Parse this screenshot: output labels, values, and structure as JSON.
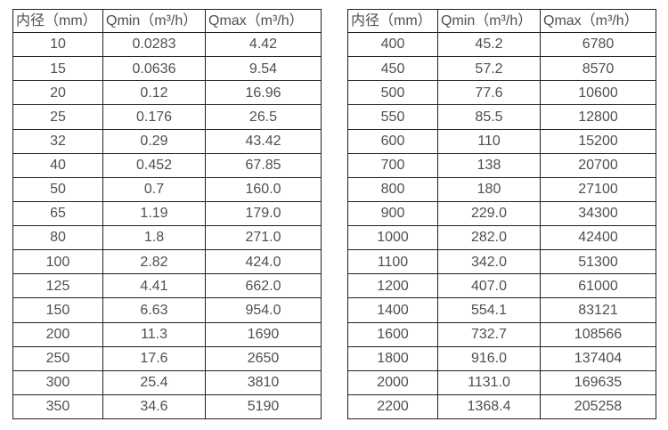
{
  "colors": {
    "background": "#ffffff",
    "border": "#212121",
    "text": "#4f4f4f"
  },
  "tables": [
    {
      "name": "small-diameter-flow-table",
      "headers": [
        "内径（mm）",
        "Qmin（m³/h）",
        "Qmax（m³/h）"
      ],
      "rows": [
        [
          "10",
          "0.0283",
          "4.42"
        ],
        [
          "15",
          "0.0636",
          "9.54"
        ],
        [
          "20",
          "0.12",
          "16.96"
        ],
        [
          "25",
          "0.176",
          "26.5"
        ],
        [
          "32",
          "0.29",
          "43.42"
        ],
        [
          "40",
          "0.452",
          "67.85"
        ],
        [
          "50",
          "0.7",
          "160.0"
        ],
        [
          "65",
          "1.19",
          "179.0"
        ],
        [
          "80",
          "1.8",
          "271.0"
        ],
        [
          "100",
          "2.82",
          "424.0"
        ],
        [
          "125",
          "4.41",
          "662.0"
        ],
        [
          "150",
          "6.63",
          "954.0"
        ],
        [
          "200",
          "11.3",
          "1690"
        ],
        [
          "250",
          "17.6",
          "2650"
        ],
        [
          "300",
          "25.4",
          "3810"
        ],
        [
          "350",
          "34.6",
          "5190"
        ]
      ]
    },
    {
      "name": "large-diameter-flow-table",
      "headers": [
        "内径（mm）",
        "Qmin（m³/h）",
        "Qmax（m³/h）"
      ],
      "rows": [
        [
          "400",
          "45.2",
          "6780"
        ],
        [
          "450",
          "57.2",
          "8570"
        ],
        [
          "500",
          "77.6",
          "10600"
        ],
        [
          "550",
          "85.5",
          "12800"
        ],
        [
          "600",
          "110",
          "15200"
        ],
        [
          "700",
          "138",
          "20700"
        ],
        [
          "800",
          "180",
          "27100"
        ],
        [
          "900",
          "229.0",
          "34300"
        ],
        [
          "1000",
          "282.0",
          "42400"
        ],
        [
          "1100",
          "342.0",
          "51300"
        ],
        [
          "1200",
          "407.0",
          "61000"
        ],
        [
          "1400",
          "554.1",
          "83121"
        ],
        [
          "1600",
          "732.7",
          "108566"
        ],
        [
          "1800",
          "916.0",
          "137404"
        ],
        [
          "2000",
          "1131.0",
          "169635"
        ],
        [
          "2200",
          "1368.4",
          "205258"
        ]
      ]
    }
  ],
  "chart_data": [
    {
      "type": "table",
      "title": "内径 / Qmin / Qmax flow-rate specification (small diameters)",
      "columns": [
        "内径（mm）",
        "Qmin（m³/h）",
        "Qmax（m³/h）"
      ],
      "rows": [
        [
          10,
          0.0283,
          4.42
        ],
        [
          15,
          0.0636,
          9.54
        ],
        [
          20,
          0.12,
          16.96
        ],
        [
          25,
          0.176,
          26.5
        ],
        [
          32,
          0.29,
          43.42
        ],
        [
          40,
          0.452,
          67.85
        ],
        [
          50,
          0.7,
          160.0
        ],
        [
          65,
          1.19,
          179.0
        ],
        [
          80,
          1.8,
          271.0
        ],
        [
          100,
          2.82,
          424.0
        ],
        [
          125,
          4.41,
          662.0
        ],
        [
          150,
          6.63,
          954.0
        ],
        [
          200,
          11.3,
          1690
        ],
        [
          250,
          17.6,
          2650
        ],
        [
          300,
          25.4,
          3810
        ],
        [
          350,
          34.6,
          5190
        ]
      ]
    },
    {
      "type": "table",
      "title": "内径 / Qmin / Qmax flow-rate specification (large diameters)",
      "columns": [
        "内径（mm）",
        "Qmin（m³/h）",
        "Qmax（m³/h）"
      ],
      "rows": [
        [
          400,
          45.2,
          6780
        ],
        [
          450,
          57.2,
          8570
        ],
        [
          500,
          77.6,
          10600
        ],
        [
          550,
          85.5,
          12800
        ],
        [
          600,
          110,
          15200
        ],
        [
          700,
          138,
          20700
        ],
        [
          800,
          180,
          27100
        ],
        [
          900,
          229.0,
          34300
        ],
        [
          1000,
          282.0,
          42400
        ],
        [
          1100,
          342.0,
          51300
        ],
        [
          1200,
          407.0,
          61000
        ],
        [
          1400,
          554.1,
          83121
        ],
        [
          1600,
          732.7,
          108566
        ],
        [
          1800,
          916.0,
          137404
        ],
        [
          2000,
          1131.0,
          169635
        ],
        [
          2200,
          1368.4,
          205258
        ]
      ]
    }
  ]
}
